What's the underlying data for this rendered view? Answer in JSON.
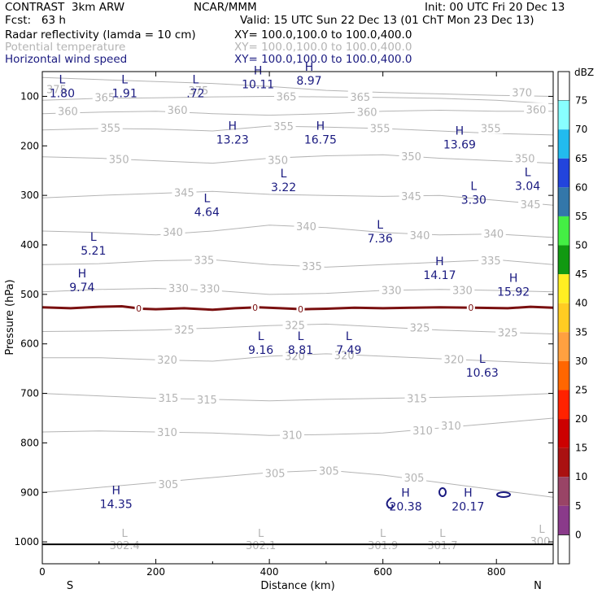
{
  "header": {
    "left_line1": "CONTRAST  3km ARW",
    "center_line1": "NCAR/MMM",
    "right_line1": "Init: 00 UTC Fri 20 Dec 13",
    "left_line2": "Fcst:   63 h",
    "right_line2": "Valid: 15 UTC Sun 22 Dec 13 (01 ChT Mon 23 Dec 13)",
    "field1_name": "Radar reflectivity (lamda = 10 cm)",
    "field1_xy": "XY= 100.0,100.0 to 100.0,400.0",
    "field2_name": "Potential temperature",
    "field2_xy": "XY= 100.0,100.0 to 100.0,400.0",
    "field3_name": "Horizontal wind speed",
    "field3_xy": "XY= 100.0,100.0 to 100.0,400.0"
  },
  "colors": {
    "theta": "#b4b4b4",
    "wind": "#1a1a80",
    "contour_zero": "#7a1010"
  },
  "colorbar": {
    "unit": "dBZ",
    "levels": [
      "75",
      "70",
      "65",
      "60",
      "55",
      "50",
      "45",
      "40",
      "35",
      "30",
      "25",
      "20",
      "15",
      "10",
      "5",
      "0"
    ],
    "colors": [
      "#b07ab8",
      "#8a3a8a",
      "#994466",
      "#aa1111",
      "#cc0000",
      "#ff2200",
      "#ff6600",
      "#ffa040",
      "#ffcc22",
      "#ffee22",
      "#119911",
      "#44ee44",
      "#3377aa",
      "#2244dd",
      "#22bbee",
      "#88ffff",
      "#ffffff"
    ]
  },
  "chart_data": {
    "type": "vertical cross-section",
    "xlabel": "Distance (km)",
    "ylabel": "Pressure (hPa)",
    "xlim": [
      0,
      900
    ],
    "ylim": [
      1050,
      50
    ],
    "x_ticks": [
      "0",
      "200",
      "400",
      "600",
      "800"
    ],
    "y_ticks": [
      "100",
      "200",
      "300",
      "400",
      "500",
      "600",
      "700",
      "800",
      "900",
      "1000"
    ],
    "x_endpoints": {
      "left": "S",
      "right": "N"
    },
    "theta_contours": [
      {
        "theta": "370",
        "pts": [
          [
            0,
            62
          ],
          [
            100,
            66
          ],
          [
            200,
            70
          ],
          [
            300,
            74
          ],
          [
            400,
            80
          ],
          [
            500,
            88
          ],
          [
            600,
            92
          ],
          [
            700,
            95
          ],
          [
            800,
            98
          ],
          [
            900,
            100
          ]
        ]
      },
      {
        "theta": "365",
        "pts": [
          [
            0,
            108
          ],
          [
            100,
            104
          ],
          [
            200,
            103
          ],
          [
            300,
            101
          ],
          [
            400,
            100
          ],
          [
            500,
            101
          ],
          [
            600,
            102
          ],
          [
            700,
            104
          ],
          [
            800,
            108
          ],
          [
            900,
            115
          ]
        ]
      },
      {
        "theta": "360",
        "pts": [
          [
            0,
            135
          ],
          [
            100,
            132
          ],
          [
            200,
            130
          ],
          [
            300,
            135
          ],
          [
            400,
            138
          ],
          [
            500,
            135
          ],
          [
            600,
            130
          ],
          [
            700,
            128
          ],
          [
            800,
            130
          ],
          [
            900,
            130
          ]
        ]
      },
      {
        "theta": "355",
        "pts": [
          [
            0,
            168
          ],
          [
            100,
            165
          ],
          [
            200,
            166
          ],
          [
            300,
            170
          ],
          [
            400,
            160
          ],
          [
            500,
            162
          ],
          [
            600,
            165
          ],
          [
            700,
            170
          ],
          [
            800,
            175
          ],
          [
            900,
            178
          ]
        ]
      },
      {
        "theta": "350",
        "pts": [
          [
            0,
            222
          ],
          [
            100,
            225
          ],
          [
            200,
            230
          ],
          [
            300,
            235
          ],
          [
            400,
            225
          ],
          [
            500,
            220
          ],
          [
            600,
            218
          ],
          [
            700,
            225
          ],
          [
            800,
            230
          ],
          [
            900,
            235
          ]
        ]
      },
      {
        "theta": "345",
        "pts": [
          [
            0,
            305
          ],
          [
            100,
            300
          ],
          [
            200,
            296
          ],
          [
            300,
            292
          ],
          [
            400,
            298
          ],
          [
            500,
            300
          ],
          [
            600,
            302
          ],
          [
            700,
            300
          ],
          [
            800,
            310
          ],
          [
            900,
            320
          ]
        ]
      },
      {
        "theta": "340",
        "pts": [
          [
            0,
            372
          ],
          [
            100,
            375
          ],
          [
            200,
            380
          ],
          [
            300,
            372
          ],
          [
            400,
            360
          ],
          [
            500,
            365
          ],
          [
            600,
            375
          ],
          [
            700,
            380
          ],
          [
            800,
            378
          ],
          [
            900,
            385
          ]
        ]
      },
      {
        "theta": "335",
        "pts": [
          [
            0,
            440
          ],
          [
            100,
            438
          ],
          [
            200,
            432
          ],
          [
            300,
            430
          ],
          [
            400,
            440
          ],
          [
            500,
            445
          ],
          [
            600,
            440
          ],
          [
            700,
            435
          ],
          [
            800,
            430
          ],
          [
            900,
            440
          ]
        ]
      },
      {
        "theta": "330",
        "pts": [
          [
            0,
            495
          ],
          [
            100,
            490
          ],
          [
            200,
            488
          ],
          [
            300,
            492
          ],
          [
            400,
            500
          ],
          [
            500,
            498
          ],
          [
            600,
            492
          ],
          [
            700,
            490
          ],
          [
            800,
            492
          ],
          [
            900,
            495
          ]
        ]
      },
      {
        "theta": "325",
        "pts": [
          [
            0,
            575
          ],
          [
            100,
            574
          ],
          [
            200,
            572
          ],
          [
            300,
            568
          ],
          [
            400,
            563
          ],
          [
            500,
            560
          ],
          [
            600,
            566
          ],
          [
            700,
            572
          ],
          [
            800,
            576
          ],
          [
            900,
            580
          ]
        ]
      },
      {
        "theta": "320",
        "pts": [
          [
            0,
            628
          ],
          [
            100,
            628
          ],
          [
            200,
            632
          ],
          [
            300,
            635
          ],
          [
            400,
            625
          ],
          [
            500,
            620
          ],
          [
            600,
            625
          ],
          [
            700,
            630
          ],
          [
            800,
            635
          ],
          [
            900,
            640
          ]
        ]
      },
      {
        "theta": "315",
        "pts": [
          [
            0,
            700
          ],
          [
            100,
            705
          ],
          [
            200,
            710
          ],
          [
            300,
            712
          ],
          [
            400,
            715
          ],
          [
            500,
            712
          ],
          [
            600,
            710
          ],
          [
            700,
            708
          ],
          [
            800,
            705
          ],
          [
            900,
            700
          ]
        ]
      },
      {
        "theta": "310",
        "pts": [
          [
            0,
            778
          ],
          [
            100,
            776
          ],
          [
            200,
            778
          ],
          [
            300,
            780
          ],
          [
            400,
            785
          ],
          [
            500,
            783
          ],
          [
            600,
            780
          ],
          [
            700,
            770
          ],
          [
            800,
            760
          ],
          [
            900,
            750
          ]
        ]
      },
      {
        "theta": "305",
        "pts": [
          [
            0,
            900
          ],
          [
            100,
            890
          ],
          [
            200,
            880
          ],
          [
            300,
            870
          ],
          [
            400,
            860
          ],
          [
            500,
            855
          ],
          [
            600,
            865
          ],
          [
            700,
            880
          ],
          [
            800,
            895
          ],
          [
            900,
            910
          ]
        ]
      }
    ],
    "theta_labels": [
      {
        "x": 25,
        "p": 85,
        "t": "375"
      },
      {
        "x": 275,
        "p": 88,
        "t": "375"
      },
      {
        "x": 110,
        "p": 102,
        "t": "365"
      },
      {
        "x": 430,
        "p": 100,
        "t": "365"
      },
      {
        "x": 560,
        "p": 101,
        "t": "365"
      },
      {
        "x": 845,
        "p": 92,
        "t": "370"
      },
      {
        "x": 45,
        "p": 130,
        "t": "360"
      },
      {
        "x": 238,
        "p": 127,
        "t": "360"
      },
      {
        "x": 572,
        "p": 131,
        "t": "360"
      },
      {
        "x": 870,
        "p": 126,
        "t": "360"
      },
      {
        "x": 120,
        "p": 163,
        "t": "355"
      },
      {
        "x": 425,
        "p": 160,
        "t": "355"
      },
      {
        "x": 595,
        "p": 164,
        "t": "355"
      },
      {
        "x": 790,
        "p": 164,
        "t": "355"
      },
      {
        "x": 135,
        "p": 227,
        "t": "350"
      },
      {
        "x": 415,
        "p": 228,
        "t": "350"
      },
      {
        "x": 650,
        "p": 221,
        "t": "350"
      },
      {
        "x": 850,
        "p": 225,
        "t": "350"
      },
      {
        "x": 250,
        "p": 294,
        "t": "345"
      },
      {
        "x": 650,
        "p": 301,
        "t": "345"
      },
      {
        "x": 860,
        "p": 318,
        "t": "345"
      },
      {
        "x": 230,
        "p": 374,
        "t": "340"
      },
      {
        "x": 465,
        "p": 362,
        "t": "340"
      },
      {
        "x": 665,
        "p": 380,
        "t": "340"
      },
      {
        "x": 795,
        "p": 377,
        "t": "340"
      },
      {
        "x": 285,
        "p": 430,
        "t": "335"
      },
      {
        "x": 475,
        "p": 443,
        "t": "335"
      },
      {
        "x": 790,
        "p": 431,
        "t": "335"
      },
      {
        "x": 240,
        "p": 487,
        "t": "330"
      },
      {
        "x": 295,
        "p": 488,
        "t": "330"
      },
      {
        "x": 615,
        "p": 491,
        "t": "330"
      },
      {
        "x": 740,
        "p": 491,
        "t": "330"
      },
      {
        "x": 250,
        "p": 571,
        "t": "325"
      },
      {
        "x": 445,
        "p": 562,
        "t": "325"
      },
      {
        "x": 665,
        "p": 567,
        "t": "325"
      },
      {
        "x": 820,
        "p": 577,
        "t": "325"
      },
      {
        "x": 220,
        "p": 632,
        "t": "320"
      },
      {
        "x": 445,
        "p": 624,
        "t": "320"
      },
      {
        "x": 532,
        "p": 623,
        "t": "320"
      },
      {
        "x": 725,
        "p": 631,
        "t": "320"
      },
      {
        "x": 222,
        "p": 709,
        "t": "315"
      },
      {
        "x": 290,
        "p": 712,
        "t": "315"
      },
      {
        "x": 660,
        "p": 710,
        "t": "315"
      },
      {
        "x": 220,
        "p": 778,
        "t": "310"
      },
      {
        "x": 440,
        "p": 784,
        "t": "310"
      },
      {
        "x": 670,
        "p": 775,
        "t": "310"
      },
      {
        "x": 720,
        "p": 765,
        "t": "310"
      },
      {
        "x": 410,
        "p": 861,
        "t": "305"
      },
      {
        "x": 505,
        "p": 856,
        "t": "305"
      },
      {
        "x": 655,
        "p": 870,
        "t": "305"
      },
      {
        "x": 222,
        "p": 883,
        "t": "305"
      }
    ],
    "theta_extrema": [
      {
        "x": 145,
        "p": 1000,
        "kind": "L",
        "value": "302.4"
      },
      {
        "x": 385,
        "p": 1000,
        "kind": "L",
        "value": "302.1"
      },
      {
        "x": 600,
        "p": 1000,
        "kind": "L",
        "value": "301.9"
      },
      {
        "x": 705,
        "p": 1000,
        "kind": "L",
        "value": "301.7"
      },
      {
        "x": 880,
        "p": 992,
        "kind": "L",
        "value": "300."
      }
    ],
    "wind_extrema": [
      {
        "x": 35,
        "p": 80,
        "kind": "L",
        "value": "1.80"
      },
      {
        "x": 145,
        "p": 80,
        "kind": "L",
        "value": "1.91"
      },
      {
        "x": 270,
        "p": 80,
        "kind": "L",
        "value": ".72"
      },
      {
        "x": 380,
        "p": 62,
        "kind": "H",
        "value": "10.11"
      },
      {
        "x": 470,
        "p": 55,
        "kind": "H",
        "value": "8.97"
      },
      {
        "x": 335,
        "p": 174,
        "kind": "H",
        "value": "13.23"
      },
      {
        "x": 490,
        "p": 174,
        "kind": "H",
        "value": "16.75"
      },
      {
        "x": 735,
        "p": 184,
        "kind": "H",
        "value": "13.69"
      },
      {
        "x": 425,
        "p": 270,
        "kind": "L",
        "value": "3.22"
      },
      {
        "x": 290,
        "p": 320,
        "kind": "L",
        "value": "4.64"
      },
      {
        "x": 760,
        "p": 296,
        "kind": "L",
        "value": "3.30"
      },
      {
        "x": 855,
        "p": 268,
        "kind": "L",
        "value": "3.04"
      },
      {
        "x": 90,
        "p": 398,
        "kind": "L",
        "value": "5.21"
      },
      {
        "x": 595,
        "p": 374,
        "kind": "L",
        "value": "7.36"
      },
      {
        "x": 70,
        "p": 472,
        "kind": "H",
        "value": "9.74"
      },
      {
        "x": 700,
        "p": 448,
        "kind": "H",
        "value": "14.17"
      },
      {
        "x": 830,
        "p": 481,
        "kind": "H",
        "value": "15.92"
      },
      {
        "x": 385,
        "p": 599,
        "kind": "L",
        "value": "9.16"
      },
      {
        "x": 455,
        "p": 599,
        "kind": "L",
        "value": "8.81"
      },
      {
        "x": 540,
        "p": 599,
        "kind": "L",
        "value": "7.49"
      },
      {
        "x": 775,
        "p": 645,
        "kind": "L",
        "value": "10.63"
      },
      {
        "x": 130,
        "p": 910,
        "kind": "H",
        "value": "14.35"
      },
      {
        "x": 640,
        "p": 915,
        "kind": "H",
        "value": "20.38"
      },
      {
        "x": 750,
        "p": 915,
        "kind": "H",
        "value": "20.17"
      }
    ],
    "reflectivity_zero_contour": {
      "label": "0",
      "pts": [
        [
          0,
          526
        ],
        [
          50,
          528
        ],
        [
          100,
          525
        ],
        [
          140,
          524
        ],
        [
          175,
          529
        ],
        [
          200,
          530
        ],
        [
          250,
          528
        ],
        [
          300,
          531
        ],
        [
          340,
          528
        ],
        [
          380,
          526
        ],
        [
          420,
          528
        ],
        [
          460,
          530
        ],
        [
          500,
          529
        ],
        [
          550,
          527
        ],
        [
          600,
          528
        ],
        [
          650,
          527
        ],
        [
          700,
          526
        ],
        [
          760,
          527
        ],
        [
          820,
          528
        ],
        [
          860,
          525
        ],
        [
          900,
          527
        ]
      ],
      "label_x": [
        170,
        375,
        455,
        755
      ]
    },
    "surface_line_p": 1005
  }
}
